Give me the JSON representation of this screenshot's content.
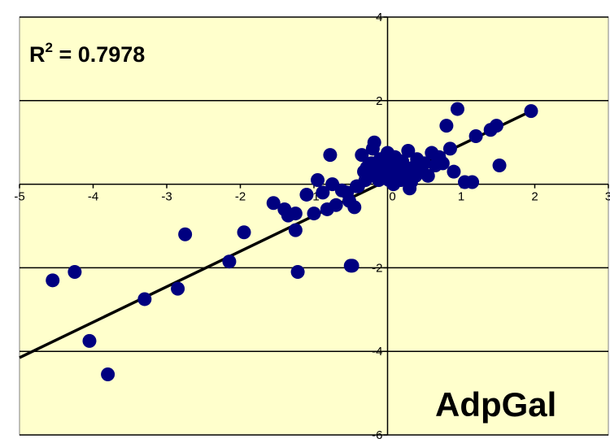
{
  "chart_data": {
    "type": "scatter",
    "xlim": [
      -5,
      3
    ],
    "ylim": [
      -6,
      4
    ],
    "x_ticks": [
      -5,
      -4,
      -3,
      -2,
      -1,
      0,
      1,
      2,
      3
    ],
    "y_ticks": [
      -6,
      -4,
      -2,
      0,
      2,
      4
    ],
    "x_tick_labels": [
      "-5",
      "-4",
      "-3",
      "-2",
      "-1",
      "0",
      "1",
      "2",
      "3"
    ],
    "y_tick_labels": [
      "-6",
      "-4",
      "-2",
      "",
      "2",
      "4"
    ],
    "grid": "horizontal",
    "background_color": "#ffffcc",
    "marker_color": "#000080",
    "trendline_color": "#000000",
    "r2_prefix": "R",
    "r2_sup": "2",
    "r2_value": " = 0.7978",
    "panel_label": "AdpGal",
    "trendline": {
      "x": [
        -5,
        1.95
      ],
      "y": [
        -4.15,
        1.75
      ]
    },
    "points": {
      "x": [
        -4.55,
        -4.25,
        -4.05,
        -3.8,
        -3.3,
        -2.85,
        -2.75,
        -2.15,
        -1.95,
        -1.55,
        -1.4,
        -1.35,
        -1.25,
        -1.25,
        -1.22,
        -1.1,
        -1.0,
        -0.95,
        -0.88,
        -0.82,
        -0.78,
        -0.75,
        -0.7,
        -0.62,
        -0.55,
        -0.52,
        -0.5,
        -0.48,
        -0.45,
        -0.42,
        -0.4,
        -0.35,
        -0.32,
        -0.3,
        -0.28,
        -0.25,
        -0.22,
        -0.2,
        -0.18,
        -0.15,
        -0.12,
        -0.1,
        -0.08,
        -0.05,
        -0.02,
        0.0,
        0.02,
        0.05,
        0.08,
        0.1,
        0.12,
        0.15,
        0.18,
        0.2,
        0.22,
        0.25,
        0.28,
        0.3,
        0.32,
        0.35,
        0.38,
        0.4,
        0.45,
        0.5,
        0.55,
        0.6,
        0.65,
        0.7,
        0.75,
        0.8,
        0.85,
        0.9,
        0.95,
        1.05,
        1.15,
        1.2,
        1.4,
        1.48,
        1.52,
        1.95
      ],
      "y": [
        -2.3,
        -2.1,
        -3.75,
        -4.55,
        -2.75,
        -2.5,
        -1.2,
        -1.85,
        -1.15,
        -0.45,
        -0.6,
        -0.75,
        -0.7,
        -1.1,
        -2.1,
        -0.25,
        -0.7,
        0.1,
        -0.2,
        -0.6,
        0.7,
        0.0,
        -0.5,
        -0.15,
        -0.2,
        -0.4,
        -1.95,
        -1.95,
        -0.55,
        -0.05,
        -0.05,
        0.7,
        0.3,
        0.1,
        0.4,
        0.2,
        0.5,
        0.85,
        1.0,
        0.3,
        0.1,
        0.6,
        0.4,
        0.2,
        0.55,
        0.75,
        0.1,
        0.3,
        0.0,
        0.65,
        0.45,
        0.25,
        0.1,
        0.55,
        0.3,
        0.15,
        0.8,
        -0.1,
        0.05,
        0.4,
        0.2,
        0.6,
        0.35,
        0.5,
        0.2,
        0.75,
        0.45,
        0.65,
        0.5,
        1.4,
        0.85,
        0.3,
        1.8,
        0.05,
        0.05,
        1.15,
        1.3,
        1.4,
        0.45,
        1.75
      ]
    }
  }
}
